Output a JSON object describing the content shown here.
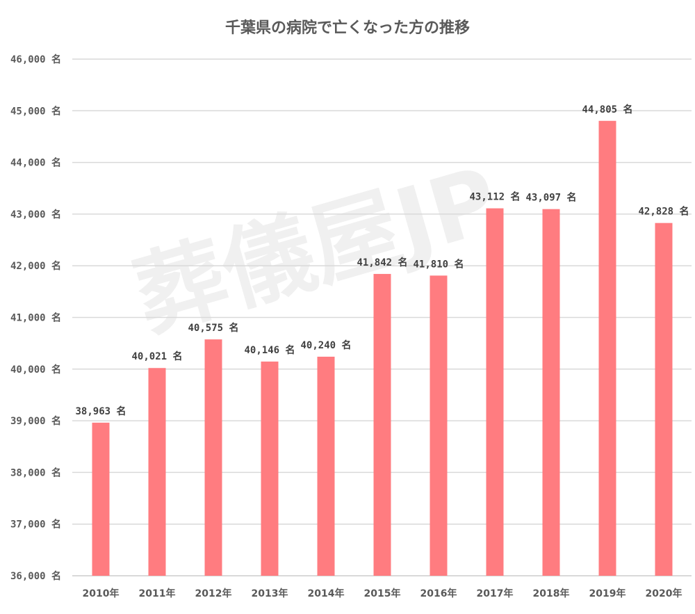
{
  "chart_data": {
    "type": "bar",
    "title": "千葉県の病院で亡くなった方の推移",
    "xlabel": "",
    "ylabel": "",
    "categories": [
      "2010年",
      "2011年",
      "2012年",
      "2013年",
      "2014年",
      "2015年",
      "2016年",
      "2017年",
      "2018年",
      "2019年",
      "2020年"
    ],
    "values": [
      38963,
      40021,
      40575,
      40146,
      40240,
      41842,
      41810,
      43112,
      43097,
      44805,
      42828
    ],
    "value_suffix": " 名",
    "ylim": [
      36000,
      46000
    ],
    "yticks": [
      36000,
      37000,
      38000,
      39000,
      40000,
      41000,
      42000,
      43000,
      44000,
      45000,
      46000
    ],
    "grid": true,
    "bar_color": "#FF7C80",
    "watermark": "葬儀屋JP"
  }
}
